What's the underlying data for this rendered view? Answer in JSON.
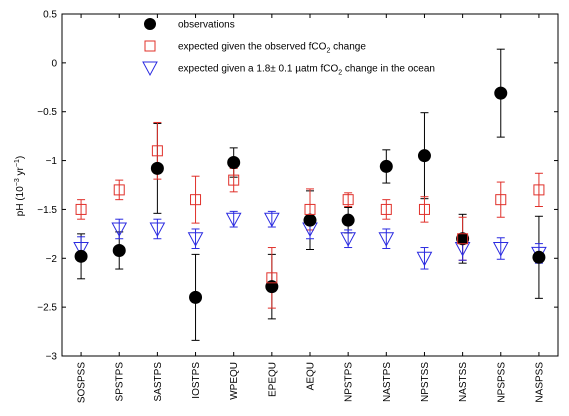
{
  "chart_data": {
    "type": "scatter",
    "title": "",
    "xlabel": "",
    "ylabel": "pH (10",
    "ylabel_sup": "−3",
    "ylabel_tail": " yr",
    "ylabel_sup2": "−1",
    "ylabel_end": ")",
    "ylim": [
      -3,
      0.5
    ],
    "yticks": [
      0.5,
      0,
      -0.5,
      -1,
      -1.5,
      -2,
      -2.5,
      -3
    ],
    "ytick_labels": [
      "0.5",
      "0",
      "−0.5",
      "−1",
      "−1.5",
      "−2",
      "−2.5",
      "−3"
    ],
    "categories": [
      "SOSPSS",
      "SPSTPS",
      "SASTPS",
      "IOSTPS",
      "WPEQU",
      "EPEQU",
      "AEQU",
      "NPSTPS",
      "NASTPS",
      "NPSTSS",
      "NASTSS",
      "NPSPSS",
      "NASPSS"
    ],
    "legend_position": "top",
    "series": [
      {
        "name": "observations",
        "name_parts": [
          "observations"
        ],
        "marker": "filled-circle",
        "color": "#000000",
        "values": [
          -1.98,
          -1.92,
          -1.08,
          -2.4,
          -1.02,
          -2.29,
          -1.61,
          -1.61,
          -1.06,
          -0.95,
          -1.8,
          -0.31,
          -1.99
        ],
        "errors": [
          0.23,
          0.19,
          0.46,
          0.44,
          0.15,
          0.33,
          0.3,
          0.13,
          0.17,
          0.44,
          0.25,
          0.45,
          0.42
        ]
      },
      {
        "name": "expected given the observed fCO2 change",
        "name_parts": [
          "expected given the observed fCO",
          "2",
          " change"
        ],
        "marker": "open-square",
        "color": "#e0302a",
        "values": [
          -1.5,
          -1.3,
          -0.9,
          -1.4,
          -1.2,
          -2.2,
          -1.5,
          -1.4,
          -1.5,
          -1.5,
          -1.8,
          -1.4,
          -1.3
        ],
        "errors": [
          0.1,
          0.1,
          0.29,
          0.24,
          0.12,
          0.31,
          0.21,
          0.07,
          0.1,
          0.13,
          0.22,
          0.18,
          0.17
        ]
      },
      {
        "name": "expected given a 1.8± 0.1 µatm fCO2 change in the ocean",
        "name_parts": [
          "expected given a 1.8± 0.1 µatm fCO",
          "2",
          " change in the ocean"
        ],
        "marker": "open-triangle-down",
        "color": "#2a2ae0",
        "values": [
          -1.9,
          -1.7,
          -1.7,
          -1.8,
          -1.6,
          -1.6,
          -1.7,
          -1.8,
          -1.8,
          -2.0,
          -1.9,
          -1.9,
          -1.95
        ],
        "errors": [
          0.12,
          0.1,
          0.1,
          0.1,
          0.08,
          0.08,
          0.1,
          0.09,
          0.1,
          0.11,
          0.12,
          0.11,
          0.1
        ]
      }
    ]
  }
}
